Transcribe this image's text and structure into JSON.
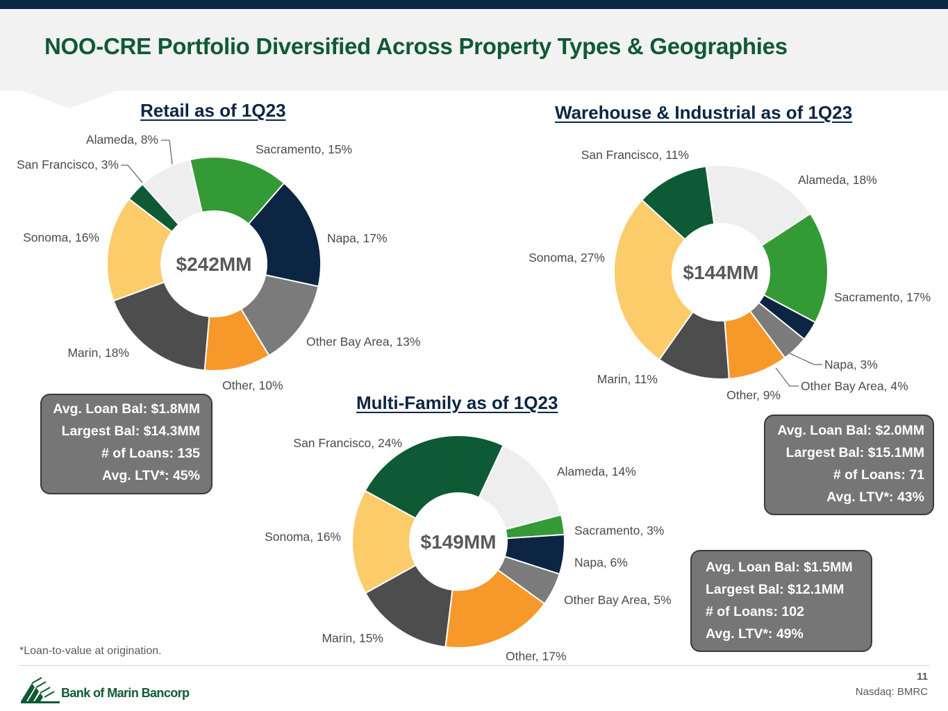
{
  "header": {
    "title": "NOO-CRE Portfolio Diversified Across Property Types & Geographies"
  },
  "chart_data": [
    {
      "type": "pie",
      "title": "Retail as of 1Q23",
      "center_label": "$242MM",
      "slices": [
        {
          "label": "Sacramento, 15%",
          "value": 15,
          "color": "#349a35"
        },
        {
          "label": "Napa, 17%",
          "value": 17,
          "color": "#0b2543"
        },
        {
          "label": "Other Bay Area, 13%",
          "value": 13,
          "color": "#7b7b7b"
        },
        {
          "label": "Other, 10%",
          "value": 10,
          "color": "#f7982a"
        },
        {
          "label": "Marin, 18%",
          "value": 18,
          "color": "#4d4d4d"
        },
        {
          "label": "Sonoma, 16%",
          "value": 16,
          "color": "#fccb6a"
        },
        {
          "label": "San Francisco, 3%",
          "value": 3,
          "color": "#0e5a34"
        },
        {
          "label": "Alameda, 8%",
          "value": 8,
          "color": "#eeeeee"
        }
      ]
    },
    {
      "type": "pie",
      "title": "Warehouse & Industrial as of 1Q23",
      "center_label": "$144MM",
      "slices": [
        {
          "label": "Alameda, 18%",
          "value": 18,
          "color": "#eeeeee"
        },
        {
          "label": "Sacramento, 17%",
          "value": 17,
          "color": "#349a35"
        },
        {
          "label": "Napa, 3%",
          "value": 3,
          "color": "#0b2543"
        },
        {
          "label": "Other Bay Area, 4%",
          "value": 4,
          "color": "#7b7b7b"
        },
        {
          "label": "Other, 9%",
          "value": 9,
          "color": "#f7982a"
        },
        {
          "label": "Marin, 11%",
          "value": 11,
          "color": "#4d4d4d"
        },
        {
          "label": "Sonoma, 27%",
          "value": 27,
          "color": "#fccb6a"
        },
        {
          "label": "San Francisco, 11%",
          "value": 11,
          "color": "#0e5a34"
        }
      ]
    },
    {
      "type": "pie",
      "title": "Multi-Family as of 1Q23",
      "center_label": "$149MM",
      "slices": [
        {
          "label": "Alameda, 14%",
          "value": 14,
          "color": "#eeeeee"
        },
        {
          "label": "Sacramento, 3%",
          "value": 3,
          "color": "#349a35"
        },
        {
          "label": "Napa, 6%",
          "value": 6,
          "color": "#0b2543"
        },
        {
          "label": "Other Bay Area, 5%",
          "value": 5,
          "color": "#7b7b7b"
        },
        {
          "label": "Other, 17%",
          "value": 17,
          "color": "#f7982a"
        },
        {
          "label": "Marin, 15%",
          "value": 15,
          "color": "#4d4d4d"
        },
        {
          "label": "Sonoma, 16%",
          "value": 16,
          "color": "#fccb6a"
        },
        {
          "label": "San Francisco, 24%",
          "value": 24,
          "color": "#0e5a34"
        }
      ]
    }
  ],
  "stats": {
    "retail": [
      "Avg. Loan Bal: $1.8MM",
      "Largest Bal: $14.3MM",
      "# of Loans: 135",
      "Avg. LTV*: 45%"
    ],
    "warehouse": [
      "Avg. Loan Bal: $2.0MM",
      "Largest Bal: $15.1MM",
      "# of Loans: 71",
      "Avg. LTV*: 43%"
    ],
    "multifamily": [
      "Avg. Loan Bal: $1.5MM",
      "Largest Bal: $12.1MM",
      "# of Loans: 102",
      "Avg. LTV*: 49%"
    ]
  },
  "footer": {
    "footnote": "*Loan-to-value at origination.",
    "logo_text": "Bank of Marin Bancorp",
    "page_number": "11",
    "ticker": "Nasdaq: BMRC"
  }
}
